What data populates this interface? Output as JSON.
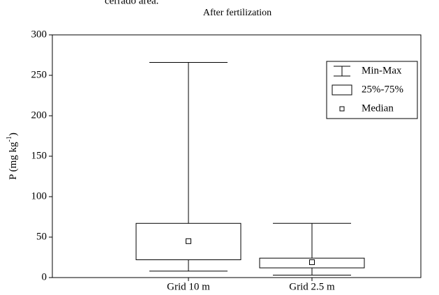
{
  "caption_fragment": "cerrado area.",
  "chart_data": {
    "type": "box",
    "title": "After fertilization",
    "y_label": {
      "text": "P (mg kg",
      "sup": "-1",
      "end": ")"
    },
    "categories": [
      "Grid  10 m",
      "Grid 2.5 m"
    ],
    "boxes": [
      {
        "min": 8,
        "q1": 22,
        "median": 45,
        "q3": 67,
        "max": 266
      },
      {
        "min": 3,
        "q1": 12,
        "median": 19,
        "q3": 24,
        "max": 67
      }
    ],
    "ylim": [
      0,
      300
    ],
    "yticks": [
      0,
      50,
      100,
      150,
      200,
      250,
      300
    ],
    "legend": {
      "position": "upper right",
      "entries": [
        "Min-Max",
        "25%-75%",
        "Median"
      ]
    },
    "color": "#ffffff"
  }
}
